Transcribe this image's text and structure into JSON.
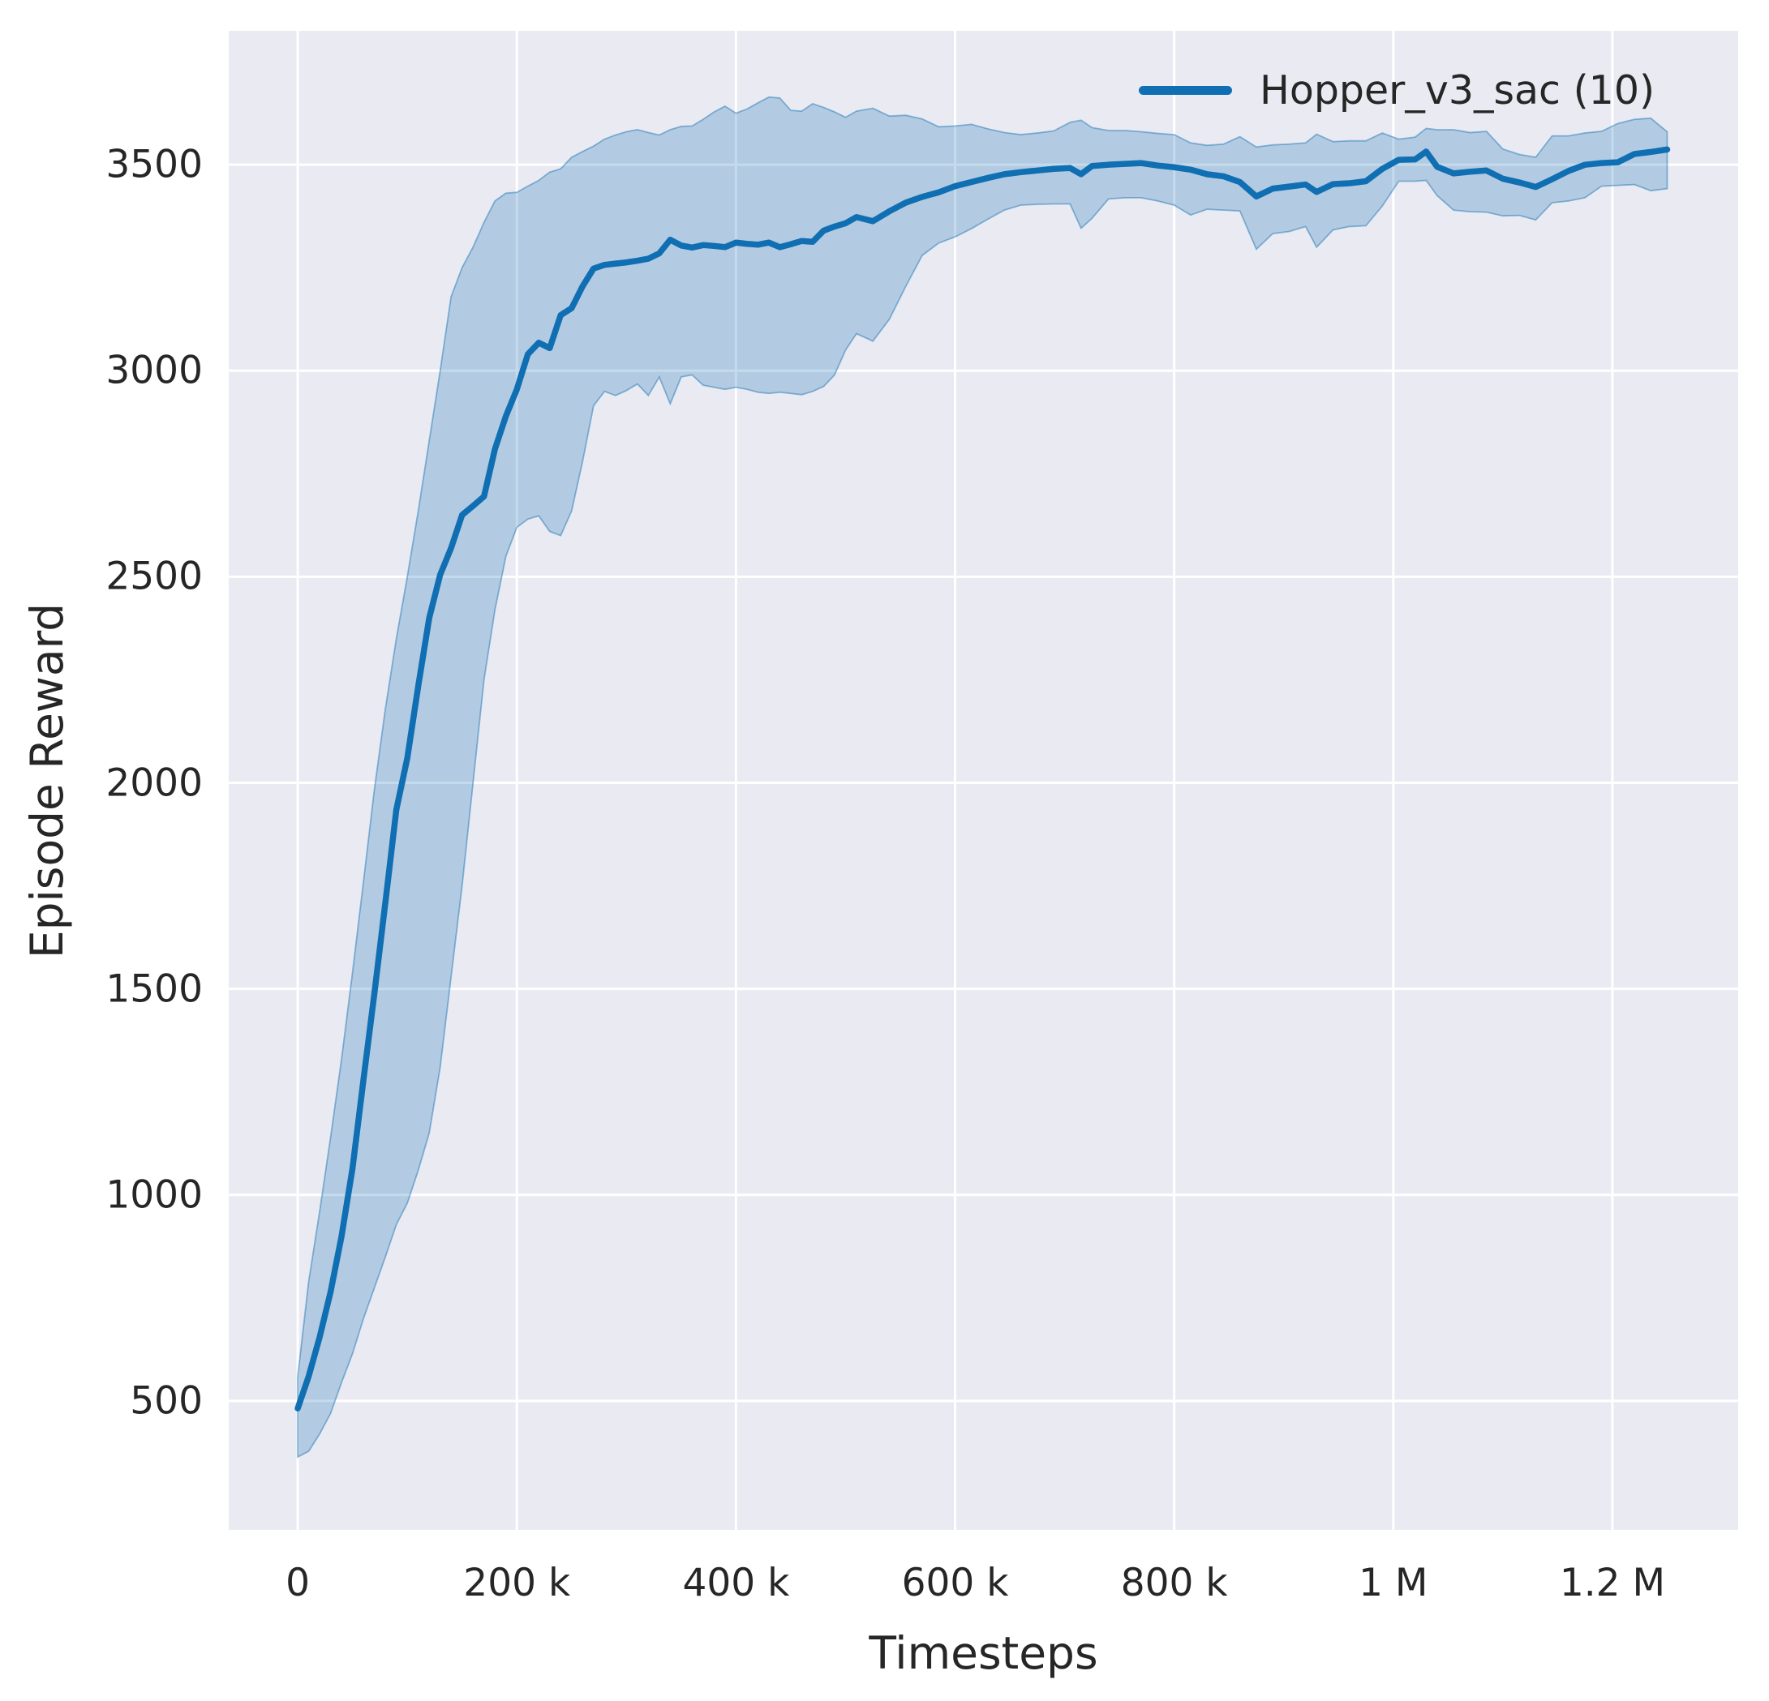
{
  "figure": {
    "background": "#ffffff",
    "axes_background": "#eaeaf2",
    "grid_color": "#ffffff",
    "text_color": "#262626"
  },
  "chart_data": {
    "type": "line",
    "title": "",
    "xlabel": "Timesteps",
    "ylabel": "Episode Reward",
    "xlim": [
      -63000,
      1314800
    ],
    "ylim": [
      187,
      3825
    ],
    "grid": true,
    "legend_position": "upper right",
    "xticks": [
      {
        "value": 0,
        "label": "0"
      },
      {
        "value": 200000,
        "label": "200 k"
      },
      {
        "value": 400000,
        "label": "400 k"
      },
      {
        "value": 600000,
        "label": "600 k"
      },
      {
        "value": 800000,
        "label": "800 k"
      },
      {
        "value": 1000000,
        "label": "1 M"
      },
      {
        "value": 1200000,
        "label": "1.2 M"
      }
    ],
    "yticks": [
      {
        "value": 500,
        "label": "500"
      },
      {
        "value": 1000,
        "label": "1000"
      },
      {
        "value": 1500,
        "label": "1500"
      },
      {
        "value": 2000,
        "label": "2000"
      },
      {
        "value": 2500,
        "label": "2500"
      },
      {
        "value": 3000,
        "label": "3000"
      },
      {
        "value": 3500,
        "label": "3500"
      }
    ],
    "series": [
      {
        "name": "Hopper_v3_sac",
        "legend_label": "Hopper_v3_sac (10)",
        "color": "#0f6fb2",
        "band_fill_opacity": 0.25,
        "x": [
          0,
          10000,
          20000,
          30000,
          40000,
          50000,
          60000,
          70000,
          80000,
          90000,
          100000,
          110000,
          120000,
          130000,
          140000,
          150000,
          160000,
          170000,
          180000,
          190000,
          200000,
          210000,
          220000,
          230000,
          240000,
          250000,
          260000,
          270000,
          280000,
          290000,
          300000,
          310000,
          320000,
          330000,
          340000,
          350000,
          360000,
          370000,
          380000,
          390000,
          400000,
          410000,
          420000,
          430000,
          440000,
          450000,
          460000,
          470000,
          480000,
          490000,
          500000,
          510000,
          525000,
          540000,
          555000,
          570000,
          585000,
          600000,
          615000,
          630000,
          645000,
          660000,
          675000,
          690000,
          705000,
          715000,
          725000,
          740000,
          755000,
          770000,
          785000,
          800000,
          815000,
          830000,
          845000,
          860000,
          875000,
          890000,
          905000,
          920000,
          930000,
          945000,
          960000,
          975000,
          990000,
          1005000,
          1020000,
          1030000,
          1040000,
          1055000,
          1070000,
          1085000,
          1100000,
          1115000,
          1130000,
          1145000,
          1160000,
          1175000,
          1190000,
          1205000,
          1220000,
          1235000,
          1250000
        ],
        "mean": [
          482,
          560,
          655,
          765,
          900,
          1065,
          1280,
          1490,
          1710,
          1935,
          2060,
          2235,
          2400,
          2505,
          2570,
          2650,
          2672,
          2695,
          2810,
          2890,
          2955,
          3040,
          3068,
          3055,
          3135,
          3152,
          3205,
          3248,
          3257,
          3260,
          3263,
          3267,
          3272,
          3285,
          3318,
          3304,
          3299,
          3305,
          3303,
          3300,
          3311,
          3308,
          3306,
          3311,
          3300,
          3307,
          3315,
          3313,
          3340,
          3350,
          3358,
          3373,
          3363,
          3387,
          3408,
          3422,
          3433,
          3448,
          3458,
          3468,
          3477,
          3482,
          3486,
          3490,
          3492,
          3477,
          3497,
          3500,
          3502,
          3504,
          3498,
          3494,
          3488,
          3477,
          3472,
          3458,
          3423,
          3442,
          3447,
          3452,
          3434,
          3453,
          3455,
          3460,
          3490,
          3512,
          3513,
          3532,
          3495,
          3479,
          3483,
          3486,
          3466,
          3457,
          3446,
          3465,
          3485,
          3500,
          3504,
          3506,
          3526,
          3531,
          3537
        ],
        "band_lower": [
          364,
          378,
          420,
          470,
          545,
          615,
          700,
          775,
          850,
          928,
          980,
          1060,
          1150,
          1310,
          1530,
          1750,
          2000,
          2250,
          2420,
          2550,
          2620,
          2640,
          2648,
          2610,
          2600,
          2660,
          2780,
          2915,
          2950,
          2940,
          2952,
          2968,
          2940,
          2985,
          2920,
          2985,
          2990,
          2965,
          2960,
          2955,
          2960,
          2955,
          2948,
          2945,
          2948,
          2945,
          2942,
          2950,
          2962,
          2990,
          3050,
          3090,
          3072,
          3125,
          3205,
          3280,
          3310,
          3325,
          3345,
          3368,
          3390,
          3402,
          3404,
          3405,
          3405,
          3346,
          3370,
          3417,
          3420,
          3420,
          3412,
          3402,
          3378,
          3392,
          3390,
          3388,
          3295,
          3333,
          3338,
          3350,
          3300,
          3342,
          3350,
          3352,
          3400,
          3460,
          3460,
          3462,
          3425,
          3390,
          3386,
          3385,
          3376,
          3377,
          3366,
          3408,
          3412,
          3420,
          3448,
          3450,
          3452,
          3437,
          3442
        ],
        "band_upper": [
          560,
          790,
          960,
          1140,
          1330,
          1540,
          1760,
          1985,
          2180,
          2350,
          2500,
          2660,
          2830,
          3000,
          3180,
          3250,
          3300,
          3360,
          3412,
          3431,
          3433,
          3448,
          3462,
          3482,
          3490,
          3518,
          3532,
          3545,
          3562,
          3572,
          3580,
          3585,
          3578,
          3572,
          3585,
          3593,
          3594,
          3610,
          3628,
          3642,
          3625,
          3635,
          3650,
          3664,
          3662,
          3632,
          3630,
          3648,
          3639,
          3628,
          3615,
          3630,
          3637,
          3618,
          3620,
          3611,
          3592,
          3594,
          3598,
          3587,
          3578,
          3573,
          3577,
          3582,
          3603,
          3608,
          3590,
          3583,
          3583,
          3580,
          3576,
          3573,
          3553,
          3547,
          3550,
          3568,
          3543,
          3548,
          3550,
          3553,
          3574,
          3556,
          3558,
          3558,
          3577,
          3562,
          3567,
          3588,
          3585,
          3585,
          3578,
          3581,
          3538,
          3525,
          3518,
          3570,
          3570,
          3577,
          3581,
          3600,
          3610,
          3613,
          3580
        ]
      }
    ]
  }
}
